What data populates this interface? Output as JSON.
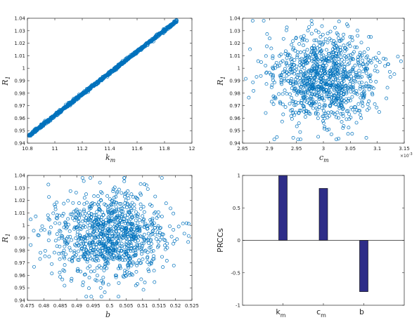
{
  "colors": {
    "marker": "#0072BD",
    "bar": "#2E2D88",
    "axis": "#262626"
  },
  "chart_data": [
    {
      "type": "scatter",
      "xlabel": "k",
      "xlabel_sub": "m",
      "ylabel": "R",
      "ylabel_sub": "1",
      "xlim": [
        10.8,
        12
      ],
      "ylim": [
        0.94,
        1.04
      ],
      "xticks": [
        "10.8",
        "11",
        "11.2",
        "11.4",
        "11.6",
        "11.8",
        "12"
      ],
      "yticks": [
        "0.94",
        "0.95",
        "0.96",
        "0.97",
        "0.98",
        "0.99",
        "1",
        "1.01",
        "1.02",
        "1.03",
        "1.04"
      ],
      "pattern": "linear",
      "line_from": [
        10.81,
        0.946
      ],
      "line_to": [
        11.89,
        1.038
      ],
      "n_points": 1000
    },
    {
      "type": "scatter",
      "xlabel": "c",
      "xlabel_sub": "m",
      "ylabel": "R",
      "ylabel_sub": "1",
      "x_multiplier": "×10",
      "x_multiplier_exp": "-3",
      "xlim": [
        2.85,
        3.15
      ],
      "ylim": [
        0.94,
        1.04
      ],
      "xticks": [
        "2.85",
        "2.9",
        "2.95",
        "3",
        "3.05",
        "3.1",
        "3.15"
      ],
      "yticks": [
        "0.94",
        "0.95",
        "0.96",
        "0.97",
        "0.98",
        "0.99",
        "1",
        "1.01",
        "1.02",
        "1.03",
        "1.04"
      ],
      "pattern": "cloud",
      "x_center": 3.0,
      "x_spread": 0.05,
      "y_center": 0.991,
      "y_spread": 0.018,
      "n_points": 1000
    },
    {
      "type": "scatter",
      "xlabel": "b",
      "xlabel_sub": "",
      "ylabel": "R",
      "ylabel_sub": "1",
      "xlim": [
        0.475,
        0.525
      ],
      "ylim": [
        0.94,
        1.04
      ],
      "xticks": [
        "0.475",
        "0.48",
        "0.485",
        "0.49",
        "0.495",
        "0.5",
        "0.505",
        "0.51",
        "0.515",
        "0.52",
        "0.525"
      ],
      "yticks": [
        "0.94",
        "0.95",
        "0.96",
        "0.97",
        "0.98",
        "0.99",
        "1",
        "1.01",
        "1.02",
        "1.03",
        "1.04"
      ],
      "pattern": "cloud",
      "x_center": 0.5,
      "x_spread": 0.0085,
      "y_center": 0.991,
      "y_spread": 0.018,
      "n_points": 1000
    },
    {
      "type": "bar",
      "ylabel": "PRCCs",
      "ylim": [
        -1,
        1
      ],
      "yticks": [
        "-1",
        "-0.5",
        "0",
        "0.5",
        "1"
      ],
      "categories": [
        {
          "main": "k",
          "sub": "m"
        },
        {
          "main": "c",
          "sub": "m"
        },
        {
          "main": "b",
          "sub": ""
        }
      ],
      "values": [
        1.0,
        0.8,
        -0.79
      ]
    }
  ]
}
